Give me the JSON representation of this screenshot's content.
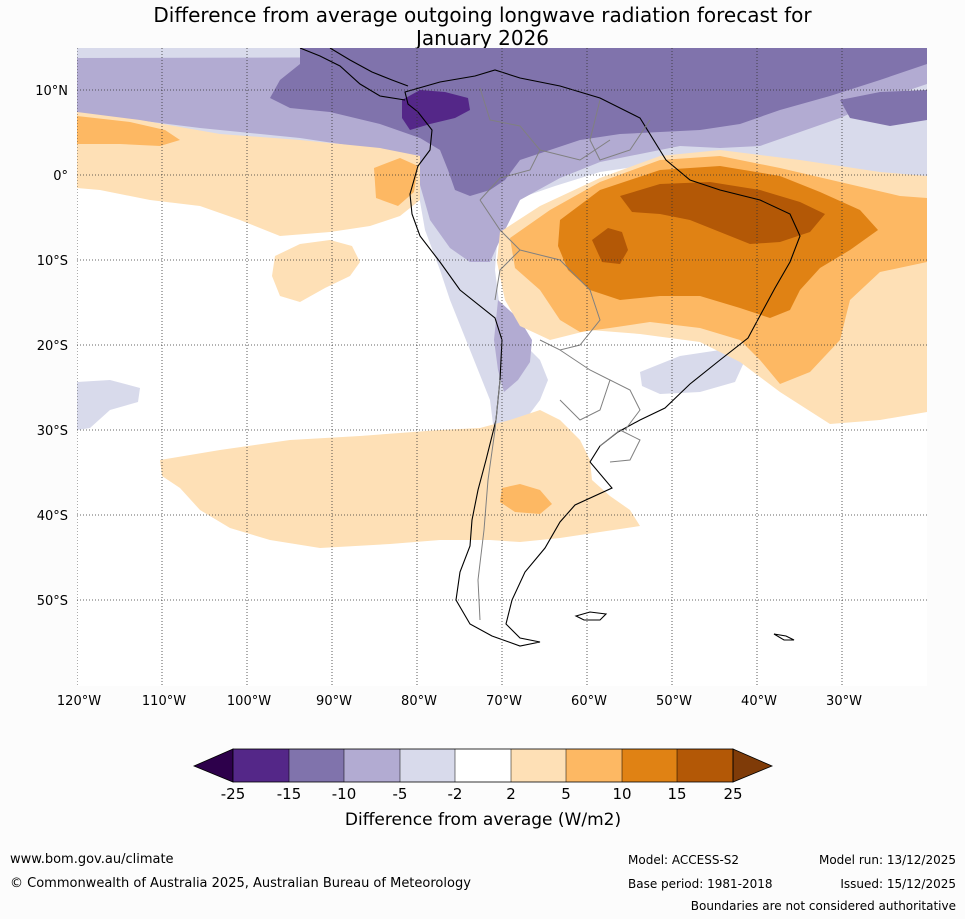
{
  "title": {
    "line1": "Difference from average outgoing longwave radiation forecast for",
    "line2": "January 2026"
  },
  "map": {
    "lat_labels": [
      "10°N",
      "0°",
      "10°S",
      "20°S",
      "30°S",
      "40°S",
      "50°S"
    ],
    "lon_labels": [
      "120°W",
      "110°W",
      "100°W",
      "90°W",
      "80°W",
      "70°W",
      "60°W",
      "50°W",
      "40°W",
      "30°W"
    ]
  },
  "colorbar": {
    "title": "Difference from average (W/m2)",
    "ticks": [
      "-25",
      "-15",
      "-10",
      "-5",
      "-2",
      "2",
      "5",
      "10",
      "15",
      "25"
    ],
    "colors": {
      "below": "#2d004b",
      "bin_1": "#542788",
      "bin_2": "#8073ac",
      "bin_3": "#b2abd2",
      "bin_4": "#d8daeb",
      "bin_5": "#ffffff",
      "bin_6": "#fee0b6",
      "bin_7": "#fdb863",
      "bin_8": "#e08214",
      "bin_9": "#b35806",
      "above": "#7f3b08"
    }
  },
  "footer": {
    "url": "www.bom.gov.au/climate",
    "copyright": "© Commonwealth of Australia 2025, Australian Bureau of Meteorology",
    "model": "Model: ACCESS-S2",
    "base_period": "Base period: 1981-2018",
    "model_run": "Model run: 13/12/2025",
    "issued": "Issued: 15/12/2025",
    "disclaimer": "Boundaries are not considered authoritative"
  }
}
